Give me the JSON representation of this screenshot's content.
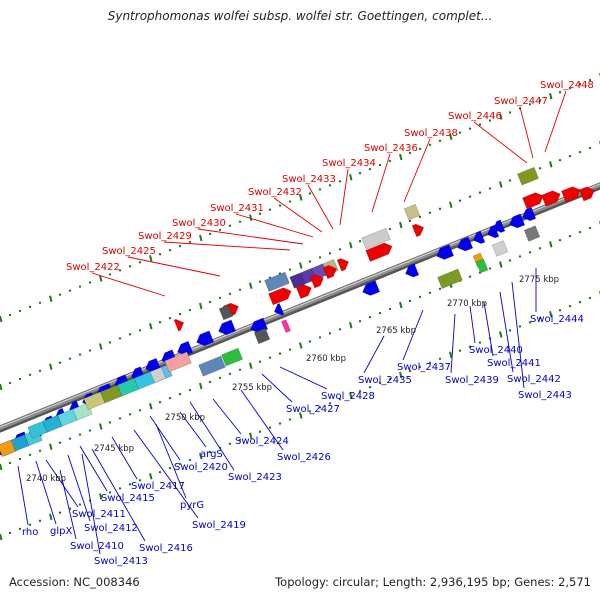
{
  "title": "Syntrophomonas wolfei subsp. wolfei str. Goettingen, complet...",
  "accession": "Accession: NC_008346",
  "topology": "Topology: circular; Length: 2,936,195 bp; Genes: 2,571",
  "colors": {
    "backbone": "#8c8c8c",
    "tick": "#1c7a1c",
    "top_label": "#dd0000",
    "bottom_label": "#0000cc",
    "forward_gene": "#ee0000",
    "reverse_gene": "#0000ee"
  },
  "scale_labels": [
    "2740 kbp",
    "2745 kbp",
    "2750 kbp",
    "2755 kbp",
    "2760 kbp",
    "2765 kbp",
    "2770 kbp",
    "2775 kbp"
  ],
  "top_labels": [
    "Swol_2422",
    "Swol_2425",
    "Swol_2429",
    "Swol_2430",
    "Swol_2431",
    "Swol_2432",
    "Swol_2433",
    "Swol_2434",
    "Swol_2436",
    "Swol_2438",
    "Swol_2446",
    "Swol_2447",
    "Swol_2448"
  ],
  "bottom_labels": [
    "rho",
    "glpX",
    "Swol_2410",
    "Swol_2411",
    "Swol_2412",
    "Swol_2413",
    "Swol_2415",
    "Swol_2416",
    "Swol_2417",
    "pyrG",
    "Swol_2419",
    "Swol_2420",
    "argS",
    "Swol_2423",
    "Swol_2424",
    "Swol_2426",
    "Swol_2427",
    "Swol_2428",
    "Swol_2435",
    "Swol_2437",
    "Swol_2439",
    "Swol_2440",
    "Swol_2441",
    "Swol_2442",
    "Swol_2443",
    "Swol_2444"
  ]
}
